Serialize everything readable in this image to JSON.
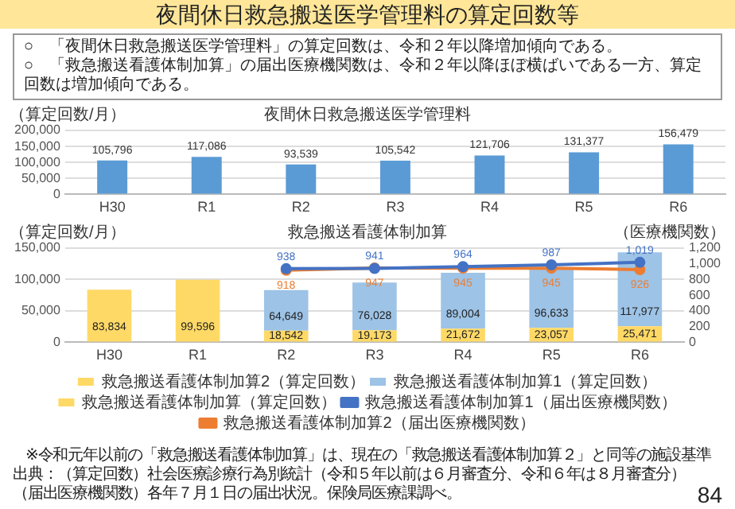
{
  "chart_data": [
    {
      "type": "other",
      "title": "夜間休日救急搬送医学管理料の算定回数等",
      "annotations": [
        "○　「夜間休日救急搬送医学管理料」の算定回数は、令和２年以降増加傾向である。",
        "○　「救急搬送看護体制加算」の届出医療機関数は、令和２年以降ほぼ横ばいである一方、算定回数は増加傾向である。"
      ]
    },
    {
      "type": "bar",
      "title": "夜間休日救急搬送医学管理料",
      "ylabel": "（算定回数/月）",
      "categories": [
        "H30",
        "R1",
        "R2",
        "R3",
        "R4",
        "R5",
        "R6"
      ],
      "values": [
        105796,
        117086,
        93539,
        105542,
        121706,
        131377,
        156479
      ],
      "value_labels": [
        "105,796",
        "117,086",
        "93,539",
        "105,542",
        "121,706",
        "131,377",
        "156,479"
      ],
      "color": "#5b9bd5",
      "ylim": [
        0,
        200000
      ],
      "yticks": [
        0,
        {
          "value": 50000,
          "label": "50,000"
        },
        {
          "value": 100000,
          "label": "100,000"
        },
        {
          "value": 150000,
          "label": "150,000"
        },
        {
          "value": 200000,
          "label": "200,000"
        }
      ],
      "grid": "y"
    },
    {
      "type": "bar",
      "title": "救急搬送看護体制加算",
      "ylabel": "（算定回数/月）",
      "y2label": "（医療機関数）",
      "categories": [
        "H30",
        "R1",
        "R2",
        "R3",
        "R4",
        "R5",
        "R6"
      ],
      "stacked": true,
      "marker": "circle",
      "legend": "bottom",
      "grid": "y",
      "series": [
        {
          "name": "救急搬送看護体制加算2（算定回数）",
          "color": "#ffd966",
          "values": [
            null,
            null,
            18542,
            19173,
            21672,
            23057,
            25471
          ],
          "value_labels": [
            null,
            null,
            "18,542",
            "19,173",
            "21,672",
            "23,057",
            "25,471"
          ]
        },
        {
          "name": "救急搬送看護体制加算1（算定回数）",
          "color": "#9dc3e6",
          "values": [
            null,
            null,
            64649,
            76028,
            89004,
            96633,
            117977
          ],
          "value_labels": [
            null,
            null,
            "64,649",
            "76,028",
            "89,004",
            "96,633",
            "117,977"
          ]
        },
        {
          "name": "救急搬送看護体制加算（算定回数）",
          "color": "#ffd966",
          "values": [
            83834,
            99596,
            null,
            null,
            null,
            null,
            null
          ],
          "value_labels": [
            "83,834",
            "99,596",
            null,
            null,
            null,
            null,
            null
          ]
        },
        {
          "name": "救急搬送看護体制加算1（届出医療機関数）",
          "type": "line",
          "axis": "y2",
          "color": "#4472c4",
          "values": [
            null,
            null,
            938,
            941,
            964,
            987,
            1019
          ],
          "value_labels": [
            null,
            null,
            "938",
            "941",
            "964",
            "987",
            "1,019"
          ]
        },
        {
          "name": "救急搬送看護体制加算2（届出医療機関数）",
          "type": "line",
          "axis": "y2",
          "color": "#ed7d31",
          "values": [
            null,
            null,
            918,
            947,
            945,
            945,
            926
          ],
          "value_labels": [
            null,
            null,
            "918",
            "947",
            "945",
            "945",
            "926"
          ]
        }
      ],
      "ylim": [
        0,
        150000
      ],
      "yticks": [
        0,
        {
          "value": 50000,
          "label": "50,000"
        },
        {
          "value": 100000,
          "label": "100,000"
        },
        {
          "value": 150000,
          "label": "150,000"
        }
      ],
      "y2lim": [
        0,
        1200
      ],
      "y2ticks": [
        0,
        200,
        400,
        600,
        800,
        {
          "value": 1000,
          "label": "1,000"
        },
        {
          "value": 1200,
          "label": "1,200"
        }
      ],
      "annotations": [
        "※令和元年以前の「救急搬送看護体制加算」は、現在の「救急搬送看護体制加算２」と同等の施設基準",
        "出典：（算定回数）社会医療診療行為別統計（令和５年以前は６月審査分、令和６年は８月審査分）",
        "（届出医療機関数）各年７月１日の届出状況。保険局医療課調べ。",
        "84"
      ]
    }
  ]
}
